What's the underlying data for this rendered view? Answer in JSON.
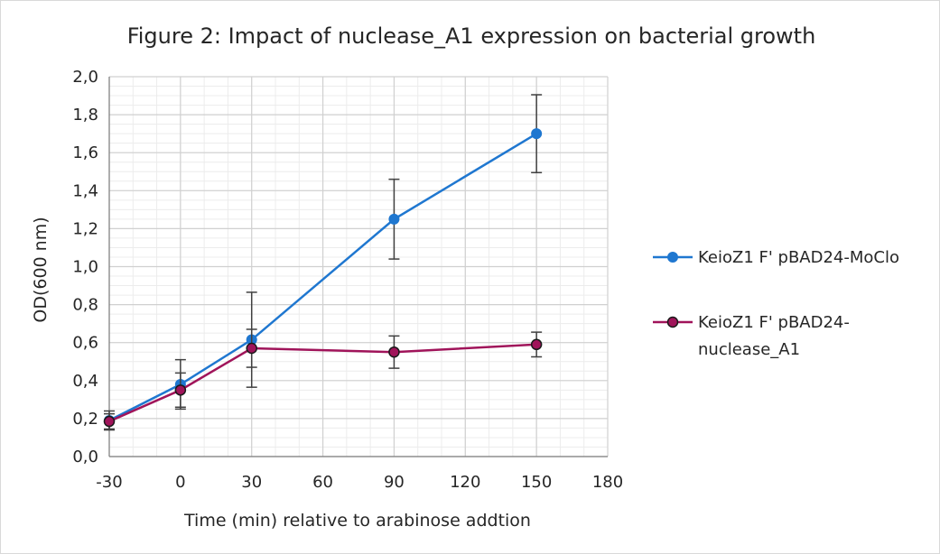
{
  "chart_data": {
    "type": "line",
    "title": "Figure 2: Impact of nuclease_A1 expression on bacterial growth",
    "xlabel": "Time (min) relative to arabinose addtion",
    "ylabel": "OD(600 nm)",
    "xlim": [
      -30,
      180
    ],
    "ylim": [
      0,
      2.0
    ],
    "x_ticks": [
      -30,
      0,
      30,
      60,
      90,
      120,
      150,
      180
    ],
    "x_tick_labels": [
      "-30",
      "0",
      "30",
      "60",
      "90",
      "120",
      "150",
      "180"
    ],
    "y_ticks": [
      0,
      0.2,
      0.4,
      0.6,
      0.8,
      1.0,
      1.2,
      1.4,
      1.6,
      1.8,
      2.0
    ],
    "y_tick_labels": [
      "0,0",
      "0,2",
      "0,4",
      "0,6",
      "0,8",
      "1,0",
      "1,2",
      "1,4",
      "1,6",
      "1,8",
      "2,0"
    ],
    "grid": true,
    "legend_position": "right",
    "series": [
      {
        "name": "KeioZ1 F' pBAD24-MoClo",
        "legend_lines": [
          "KeioZ1 F' pBAD24-MoClo"
        ],
        "color": "#1f77d0",
        "marker_fill": "#1f77d0",
        "x": [
          -30,
          0,
          30,
          90,
          150
        ],
        "y": [
          0.19,
          0.38,
          0.615,
          1.25,
          1.7
        ],
        "err": [
          0.05,
          0.13,
          0.25,
          0.21,
          0.205
        ]
      },
      {
        "name": "KeioZ1 F' pBAD24-nuclease_A1",
        "legend_lines": [
          "KeioZ1 F' pBAD24-",
          "nuclease_A1"
        ],
        "color": "#a0145a",
        "marker_fill": "#a0145a",
        "x": [
          -30,
          0,
          30,
          90,
          150
        ],
        "y": [
          0.185,
          0.35,
          0.57,
          0.55,
          0.59
        ],
        "err": [
          0.04,
          0.09,
          0.1,
          0.085,
          0.065
        ]
      }
    ]
  }
}
